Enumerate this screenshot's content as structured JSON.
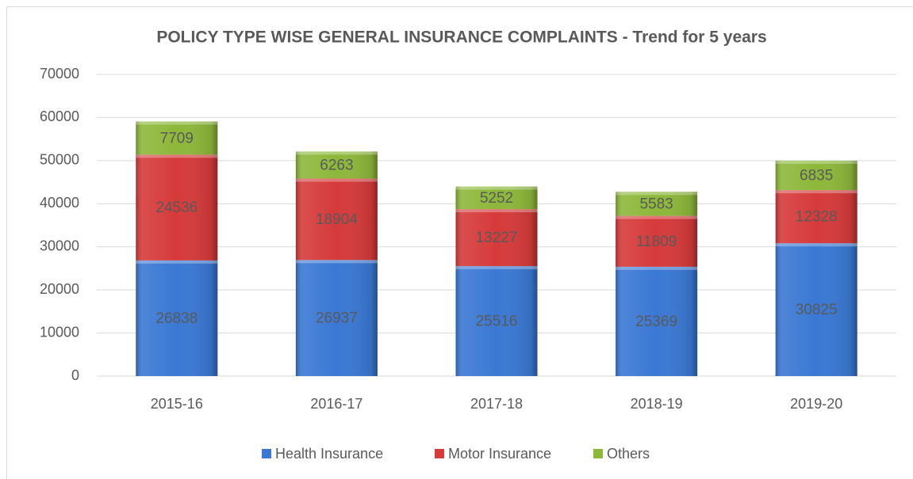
{
  "chart_data": {
    "type": "stacked_bar",
    "title": "POLICY TYPE WISE GENERAL INSURANCE COMPLAINTS - Trend for 5 years",
    "categories": [
      "2015-16",
      "2016-17",
      "2017-18",
      "2018-19",
      "2019-20"
    ],
    "series": [
      {
        "name": "Health Insurance",
        "color": "#3a78d4",
        "values": [
          26838,
          26937,
          25516,
          25369,
          30825
        ]
      },
      {
        "name": "Motor Insurance",
        "color": "#d63a3a",
        "values": [
          24536,
          18904,
          13227,
          11809,
          12328
        ]
      },
      {
        "name": "Others",
        "color": "#8db83a",
        "values": [
          7709,
          6263,
          5252,
          5583,
          6835
        ]
      }
    ],
    "ylim": [
      0,
      70000
    ],
    "yticks": [
      0,
      10000,
      20000,
      30000,
      40000,
      50000,
      60000,
      70000
    ],
    "grid": true,
    "legend": "bottom"
  }
}
